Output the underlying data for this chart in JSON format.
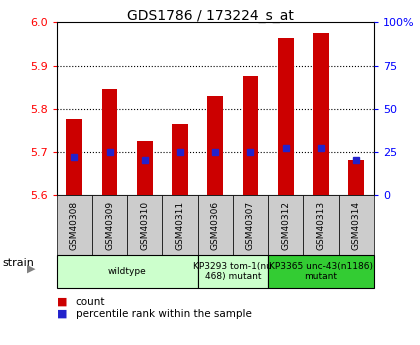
{
  "title": "GDS1786 / 173224_s_at",
  "samples": [
    "GSM40308",
    "GSM40309",
    "GSM40310",
    "GSM40311",
    "GSM40306",
    "GSM40307",
    "GSM40312",
    "GSM40313",
    "GSM40314"
  ],
  "count_values": [
    5.775,
    5.845,
    5.725,
    5.765,
    5.83,
    5.875,
    5.965,
    5.975,
    5.68
  ],
  "percentile_values": [
    22,
    25,
    20,
    25,
    25,
    25,
    27,
    27,
    20
  ],
  "ylim_left": [
    5.6,
    6.0
  ],
  "ylim_right": [
    0,
    100
  ],
  "yticks_left": [
    5.6,
    5.7,
    5.8,
    5.9,
    6.0
  ],
  "yticks_right": [
    0,
    25,
    50,
    75,
    100
  ],
  "bar_color": "#cc0000",
  "dot_color": "#2222cc",
  "bar_width": 0.45,
  "strain_groups": [
    {
      "label": "wildtype",
      "start": 0,
      "end": 4,
      "color": "#ccffcc"
    },
    {
      "label": "KP3293 tom-1(nu\n468) mutant",
      "start": 4,
      "end": 6,
      "color": "#ccffcc"
    },
    {
      "label": "KP3365 unc-43(n1186)\nmutant",
      "start": 6,
      "end": 9,
      "color": "#33cc33"
    }
  ],
  "legend_items": [
    {
      "label": "count",
      "color": "#cc0000"
    },
    {
      "label": "percentile rank within the sample",
      "color": "#2222cc"
    }
  ],
  "strain_label": "strain",
  "gridline_y": [
    5.7,
    5.8,
    5.9
  ],
  "tick_bg_color": "#cccccc"
}
